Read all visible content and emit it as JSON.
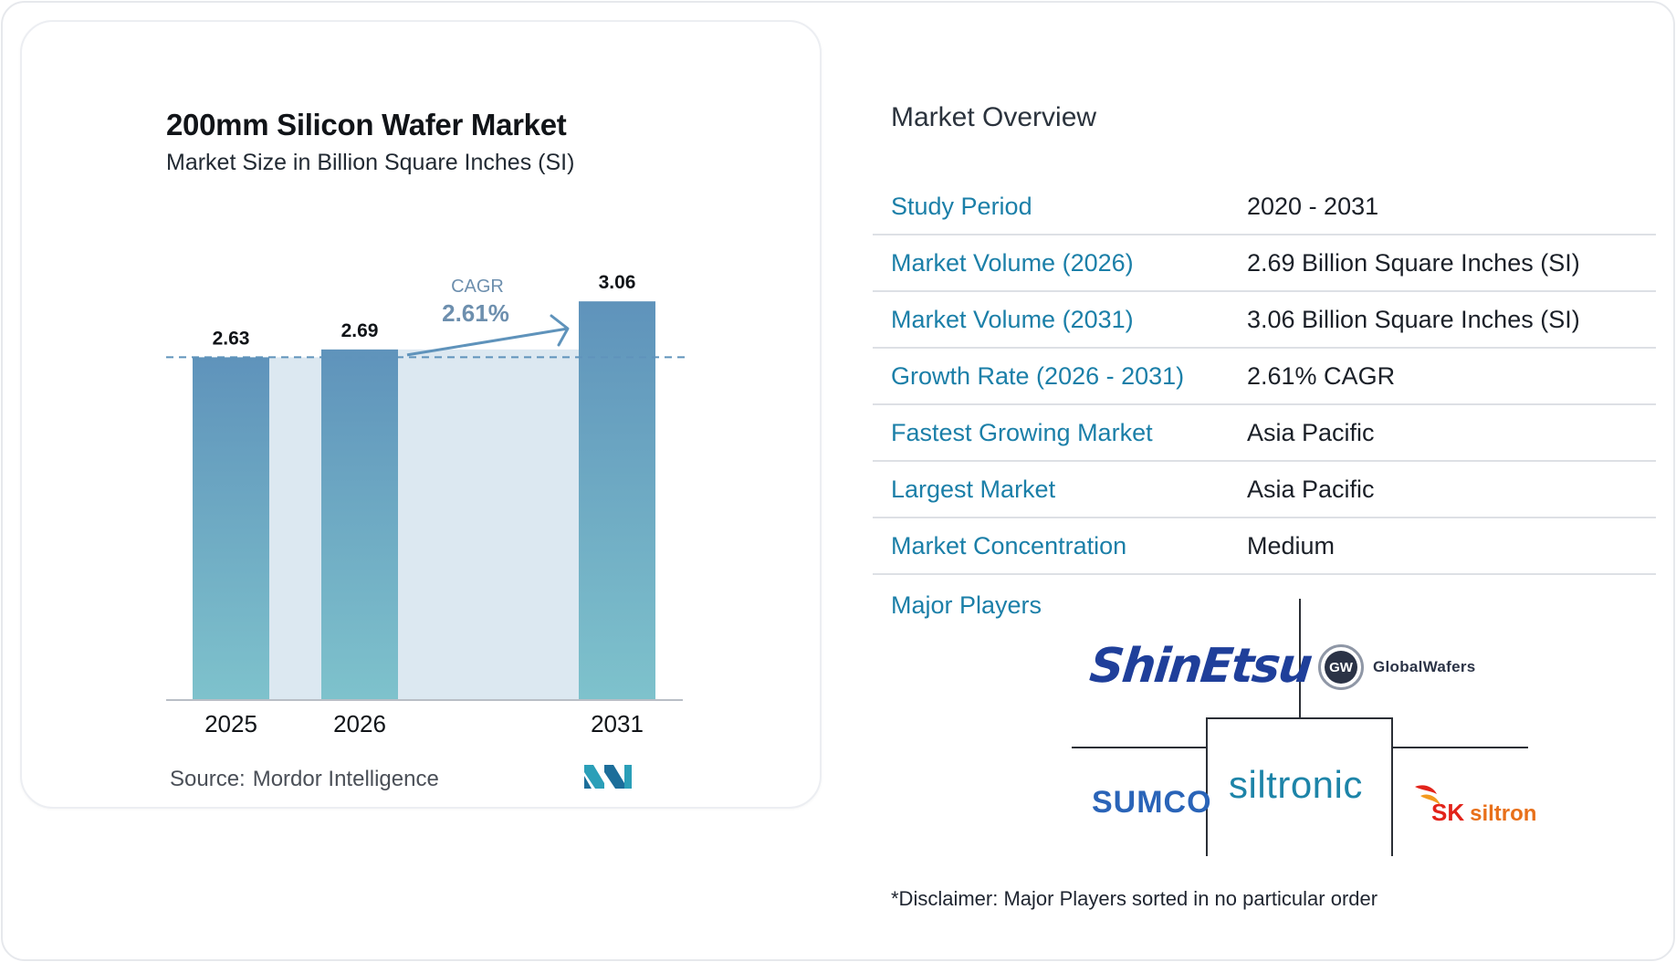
{
  "chart_data": {
    "type": "bar",
    "title": "200mm Silicon Wafer Market",
    "subtitle": "Market Size in Billion Square Inches (SI)",
    "categories": [
      "2025",
      "2026",
      "2031"
    ],
    "values": [
      2.63,
      2.69,
      3.06
    ],
    "data_labels": [
      "2.63",
      "2.69",
      "3.06"
    ],
    "cagr_label": "CAGR",
    "cagr_value": "2.61%",
    "ylim": [
      0,
      3.3
    ],
    "grid": false,
    "bar_color_top": "#5f93bb",
    "bar_color_bottom": "#7ec2cc",
    "band_color": "#dce8f1",
    "source_label": "Source:",
    "source_name": "Mordor Intelligence"
  },
  "overview": {
    "heading": "Market Overview",
    "rows": [
      {
        "label": "Study Period",
        "value": "2020 - 2031"
      },
      {
        "label": "Market Volume (2026)",
        "value": "2.69 Billion Square Inches (SI)"
      },
      {
        "label": "Market Volume (2031)",
        "value": "3.06 Billion Square Inches (SI)"
      },
      {
        "label": "Growth Rate (2026 - 2031)",
        "value": "2.61% CAGR"
      },
      {
        "label": "Fastest Growing Market",
        "value": "Asia Pacific"
      },
      {
        "label": "Largest Market",
        "value": "Asia Pacific"
      },
      {
        "label": "Market Concentration",
        "value": "Medium"
      }
    ],
    "players_label": "Major Players",
    "players": {
      "shinetsu": "ShinEtsu",
      "globalwafers_badge": "GW",
      "globalwafers": "GlobalWafers",
      "sumco": "SUMCO",
      "siltronic": "siltronic",
      "sk": "SK",
      "sk_siltron": "siltron"
    },
    "disclaimer": "*Disclaimer: Major Players sorted in no particular order"
  },
  "colors": {
    "accent_label": "#1b7fa8",
    "brand_teal": "#7ec2cc",
    "brand_blue": "#5f93bb"
  },
  "icons": {
    "mordor_logo": "mordor-intelligence-logo-icon",
    "cagr_arrow": "arrow-up-right-icon"
  }
}
